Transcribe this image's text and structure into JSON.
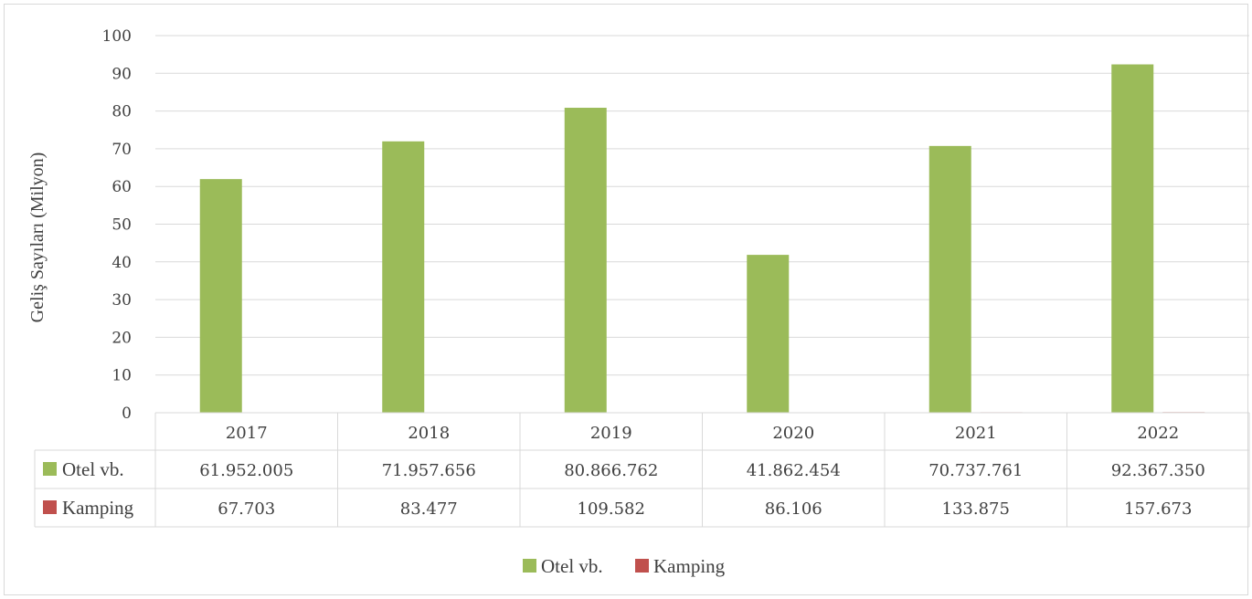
{
  "chart_data": {
    "type": "bar",
    "ylabel": "Geliş Sayıları (Milyon)",
    "ylim": [
      0,
      100
    ],
    "yticks": [
      "0",
      "10",
      "20",
      "30",
      "40",
      "50",
      "60",
      "70",
      "80",
      "90",
      "100"
    ],
    "categories": [
      "2017",
      "2018",
      "2019",
      "2020",
      "2021",
      "2022"
    ],
    "series": [
      {
        "name": "Otel vb.",
        "color": "#9bbb59",
        "values": [
          61.952005,
          71.957656,
          80.866762,
          41.862454,
          70.737761,
          92.36735
        ],
        "table_values": [
          "61.952.005",
          "71.957.656",
          "80.866.762",
          "41.862.454",
          "70.737.761",
          "92.367.350"
        ]
      },
      {
        "name": "Kamping",
        "color": "#c0504d",
        "values": [
          0.067703,
          0.083477,
          0.109582,
          0.086106,
          0.133875,
          0.157673
        ],
        "table_values": [
          "67.703",
          "83.477",
          "109.582",
          "86.106",
          "133.875",
          "157.673"
        ]
      }
    ],
    "grid": true,
    "legend": "bottom",
    "data_table": true
  }
}
